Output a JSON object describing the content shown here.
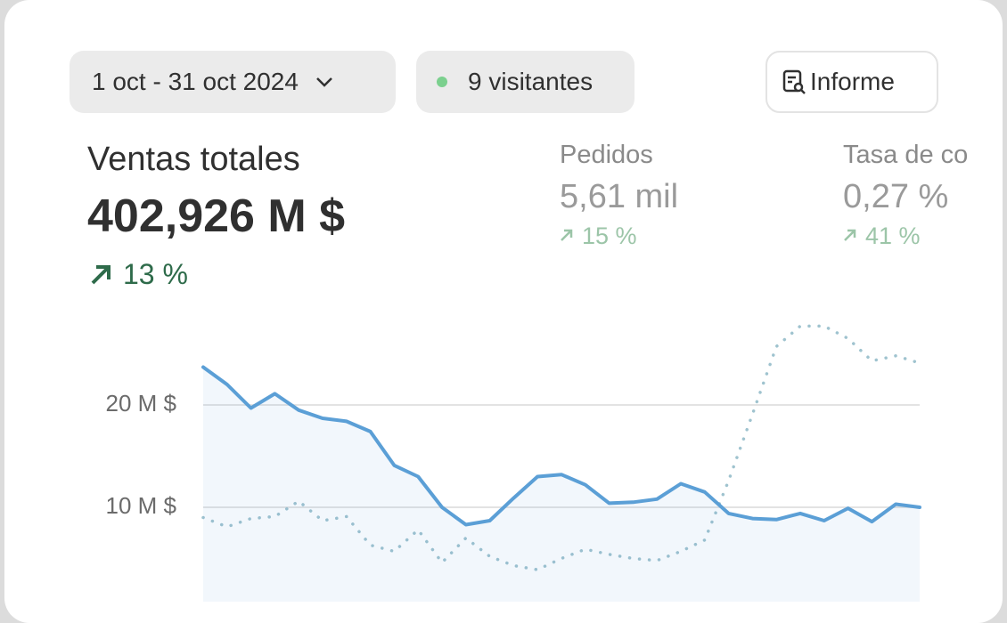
{
  "header": {
    "date_range": "1 oct - 31 oct 2024",
    "visitors": "9 visitantes",
    "report_button": "Informe"
  },
  "metrics": [
    {
      "label": "Ventas totales",
      "value": "402,926 M $",
      "change": "13 %"
    },
    {
      "label": "Pedidos",
      "value": "5,61 mil",
      "change": "15 %"
    },
    {
      "label": "Tasa de co",
      "value": "0,27 %",
      "change": "41 %"
    }
  ],
  "chart_data": {
    "type": "line",
    "ylim": [
      0,
      30
    ],
    "yticks": [
      {
        "value": 10,
        "label": "10 M $"
      },
      {
        "value": 20,
        "label": "20 M $"
      }
    ],
    "grid": true,
    "series": [
      {
        "color": "#5b9fd6",
        "style": "solid",
        "fill": true,
        "values": [
          23.7,
          22.0,
          19.7,
          21.1,
          19.5,
          18.7,
          18.4,
          17.4,
          14.1,
          13.0,
          10.0,
          8.3,
          8.7,
          10.9,
          13.0,
          13.2,
          12.2,
          10.4,
          10.5,
          10.8,
          12.3,
          11.5,
          9.4,
          8.9,
          8.8,
          9.4,
          8.7,
          9.9,
          8.6,
          10.3,
          10.0
        ]
      },
      {
        "color": "#9fc3cf",
        "style": "dotted",
        "fill": false,
        "values": [
          9.0,
          8.1,
          8.9,
          9.1,
          10.6,
          8.7,
          9.1,
          6.3,
          5.7,
          7.8,
          4.6,
          7.0,
          5.2,
          4.3,
          3.9,
          5.0,
          5.9,
          5.4,
          5.0,
          4.8,
          5.7,
          6.8,
          12.6,
          19.1,
          25.7,
          27.7,
          27.7,
          26.5,
          24.3,
          24.8,
          24.1
        ]
      }
    ]
  }
}
